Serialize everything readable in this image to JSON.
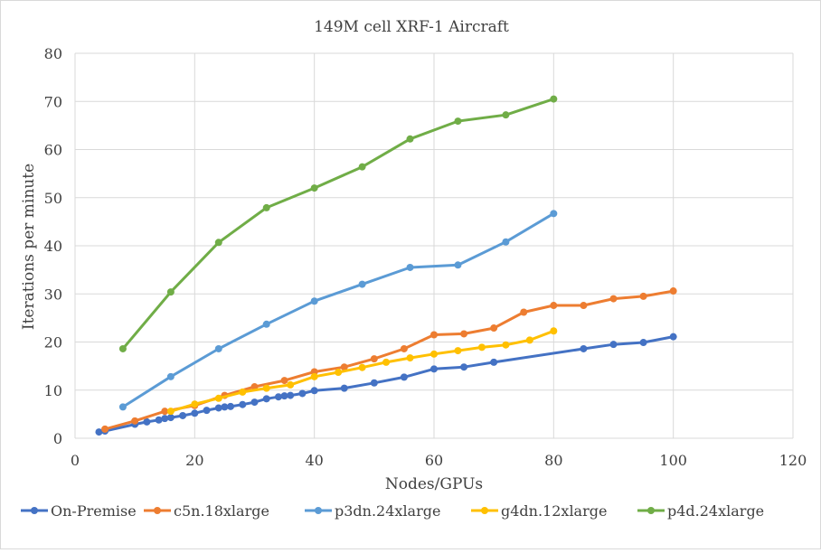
{
  "chart_data": {
    "type": "line",
    "title": "149M cell XRF-1 Aircraft",
    "xlabel": "Nodes/GPUs",
    "ylabel": "Iterations per minute",
    "xlim": [
      0,
      120
    ],
    "ylim": [
      0,
      80
    ],
    "xticks": [
      0,
      20,
      40,
      60,
      80,
      100,
      120
    ],
    "yticks": [
      0,
      10,
      20,
      30,
      40,
      50,
      60,
      70,
      80
    ],
    "grid": true,
    "legend_position": "bottom",
    "series": [
      {
        "name": "On-Premise",
        "color": "#4472c4",
        "x": [
          4,
          5,
          10,
          12,
          14,
          15,
          16,
          18,
          20,
          22,
          24,
          25,
          26,
          28,
          30,
          32,
          34,
          35,
          36,
          38,
          40,
          45,
          50,
          55,
          60,
          65,
          70,
          85,
          90,
          95,
          100
        ],
        "y": [
          1.3,
          1.5,
          2.9,
          3.4,
          3.8,
          4.1,
          4.3,
          4.7,
          5.2,
          5.8,
          6.3,
          6.5,
          6.6,
          7.0,
          7.5,
          8.2,
          8.6,
          8.8,
          8.9,
          9.3,
          9.9,
          10.4,
          11.5,
          12.7,
          14.4,
          14.8,
          15.8,
          18.6,
          19.5,
          19.9,
          21.1
        ]
      },
      {
        "name": "c5n.18xlarge",
        "color": "#ed7d31",
        "x": [
          5,
          10,
          15,
          20,
          25,
          30,
          35,
          40,
          45,
          50,
          55,
          60,
          65,
          70,
          75,
          80,
          85,
          90,
          95,
          100
        ],
        "y": [
          1.9,
          3.6,
          5.6,
          6.8,
          8.9,
          10.7,
          12.0,
          13.8,
          14.8,
          16.5,
          18.6,
          21.5,
          21.7,
          22.9,
          26.2,
          27.6,
          27.6,
          29.0,
          29.5,
          30.6
        ]
      },
      {
        "name": "p3dn.24xlarge",
        "color": "#5b9bd5",
        "x": [
          8,
          16,
          24,
          32,
          40,
          48,
          56,
          64,
          72,
          80
        ],
        "y": [
          6.5,
          12.8,
          18.6,
          23.7,
          28.5,
          32.0,
          35.5,
          36.0,
          40.8,
          46.7
        ]
      },
      {
        "name": "g4dn.12xlarge",
        "color": "#ffc000",
        "x": [
          16,
          20,
          24,
          28,
          32,
          36,
          40,
          44,
          48,
          52,
          56,
          60,
          64,
          68,
          72,
          76,
          80
        ],
        "y": [
          5.6,
          7.1,
          8.3,
          9.6,
          10.4,
          11.1,
          12.8,
          13.7,
          14.7,
          15.8,
          16.7,
          17.5,
          18.2,
          18.9,
          19.4,
          20.4,
          22.3
        ]
      },
      {
        "name": "p4d.24xlarge",
        "color": "#70ad47",
        "x": [
          8,
          16,
          24,
          32,
          40,
          48,
          56,
          64,
          72,
          80
        ],
        "y": [
          18.6,
          30.4,
          40.7,
          47.9,
          52.0,
          56.4,
          62.2,
          65.9,
          67.2,
          70.5
        ]
      }
    ]
  }
}
